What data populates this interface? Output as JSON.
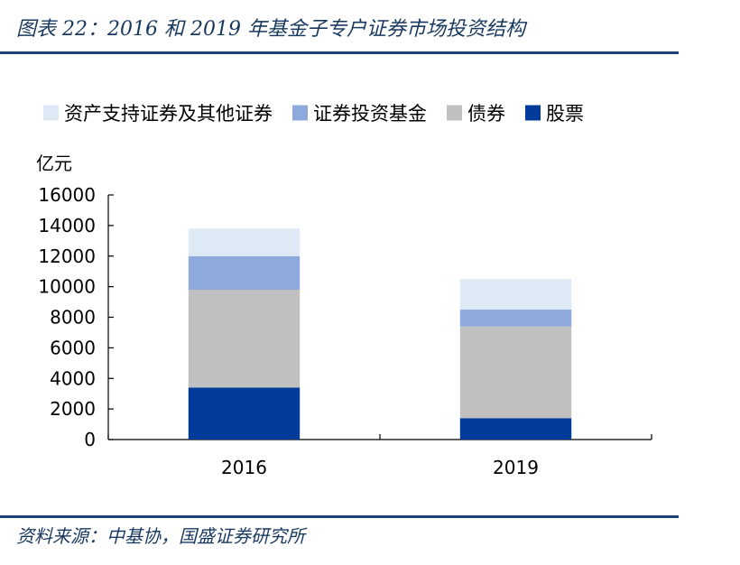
{
  "title": "图表 22：2016 和 2019 年基金子专户证券市场投资结构",
  "source": "资料来源：中基协，国盛证券研究所",
  "chart_data": {
    "type": "bar",
    "stacked": true,
    "title": "图表 22：2016 和 2019 年基金子专户证券市场投资结构",
    "ylabel": "亿元",
    "xlabel": "",
    "categories": [
      "2016",
      "2019"
    ],
    "ylim": [
      0,
      16000
    ],
    "yticks": [
      0,
      2000,
      4000,
      6000,
      8000,
      10000,
      12000,
      14000,
      16000
    ],
    "grid": false,
    "legend_position": "top",
    "series": [
      {
        "name": "股票",
        "color": "#003b9a",
        "values": [
          3400,
          1400
        ]
      },
      {
        "name": "债券",
        "color": "#c0c0c0",
        "values": [
          6400,
          6000
        ]
      },
      {
        "name": "证券投资基金",
        "color": "#8eaadc",
        "values": [
          2200,
          1100
        ]
      },
      {
        "name": "资产支持证券及其他证券",
        "color": "#dde9f5",
        "values": [
          1800,
          2000
        ]
      }
    ],
    "legend_order": [
      "资产支持证券及其他证券",
      "证券投资基金",
      "债券",
      "股票"
    ]
  }
}
